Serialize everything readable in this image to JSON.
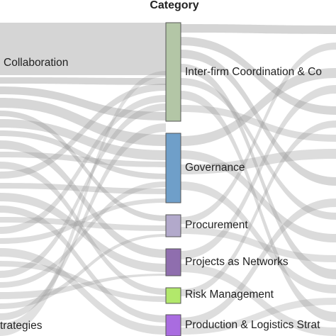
{
  "title": "Category",
  "left_labels": [
    {
      "id": "collaboration",
      "text": "Collaboration"
    },
    {
      "id": "strategies",
      "text": "trategies"
    }
  ],
  "nodes": [
    {
      "id": "inter-firm",
      "label": "Inter-firm Coordination & Co",
      "color": "#b3c6a6"
    },
    {
      "id": "governance",
      "label": "Governance",
      "color": "#6f9fc9"
    },
    {
      "id": "procurement",
      "label": "Procurement",
      "color": "#b2a9cb"
    },
    {
      "id": "projects-as-networks",
      "label": "Projects as Networks",
      "color": "#8f6eae"
    },
    {
      "id": "risk-management",
      "label": "Risk Management",
      "color": "#b2e86b"
    },
    {
      "id": "production-logistics",
      "label": "Production & Logistics Strat",
      "color": "#a96ce0"
    }
  ],
  "colors": {
    "flow": "#9a9a9a",
    "node_stroke": "#555555",
    "text": "#222222"
  }
}
